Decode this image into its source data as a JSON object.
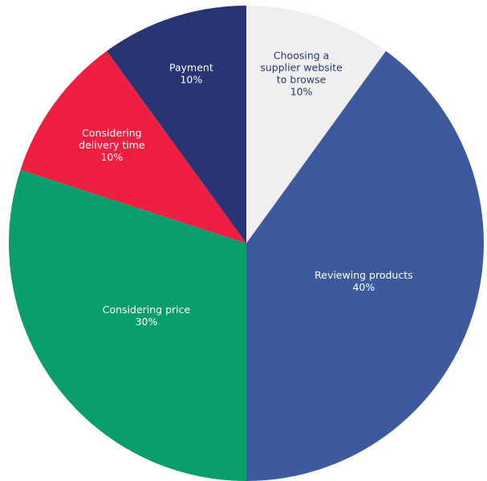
{
  "chart_data": {
    "type": "pie",
    "start_angle_deg": 0,
    "direction": "clockwise",
    "slices": [
      {
        "label_lines": [
          "Choosing a",
          "supplier website",
          "to browse"
        ],
        "value_text": "10%",
        "value": 10,
        "color": "#efefef",
        "text_color": "#2b3a6e"
      },
      {
        "label_lines": [
          "Reviewing products"
        ],
        "value_text": "40%",
        "value": 40,
        "color": "#3d5a9e",
        "text_color": "#ffffff"
      },
      {
        "label_lines": [
          "Considering price"
        ],
        "value_text": "30%",
        "value": 30,
        "color": "#0a9d6d",
        "text_color": "#ffffff"
      },
      {
        "label_lines": [
          "Considering",
          "delivery time"
        ],
        "value_text": "10%",
        "value": 10,
        "color": "#ee1f41",
        "text_color": "#ffffff"
      },
      {
        "label_lines": [
          "Payment"
        ],
        "value_text": "10%",
        "value": 10,
        "color": "#283474",
        "text_color": "#ffffff"
      }
    ]
  }
}
